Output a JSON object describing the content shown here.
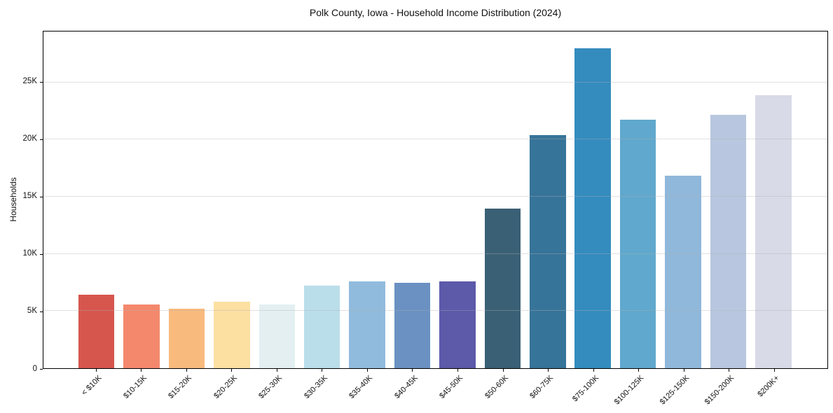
{
  "figure": {
    "background": "#ffffff",
    "spine_color": "#000000",
    "grid_color": "#b0b0b0"
  },
  "chart_data": {
    "type": "bar",
    "title": "Polk County, Iowa - Household Income Distribution (2024)",
    "xlabel": "",
    "ylabel": "Households",
    "legend_position": "none",
    "grid": "horizontal",
    "categories": [
      "< $10K",
      "$10-15K",
      "$15-20K",
      "$20-25K",
      "$25-30K",
      "$30-35K",
      "$35-40K",
      "$40-45K",
      "$45-50K",
      "$50-60K",
      "$60-75K",
      "$75-100K",
      "$100-125K",
      "$125-150K",
      "$150-200K",
      "$200K+"
    ],
    "values": [
      6400,
      5550,
      5200,
      5800,
      5600,
      7200,
      7580,
      7450,
      7600,
      13950,
      20370,
      27970,
      21760,
      16840,
      22180,
      23890
    ],
    "bar_colors": [
      "#d6564e",
      "#f4886c",
      "#f9ba7d",
      "#fce0a2",
      "#e3eff1",
      "#badeea",
      "#91bbdc",
      "#6a91c2",
      "#5c5aa9",
      "#3a6075",
      "#377499",
      "#348cbe",
      "#60a8cd",
      "#90b8da",
      "#b8c7df",
      "#d8dae7"
    ],
    "ylim": [
      0,
      29450
    ],
    "yticks": [
      {
        "value": 0,
        "label": "0"
      },
      {
        "value": 5000,
        "label": "5K"
      },
      {
        "value": 10000,
        "label": "10K"
      },
      {
        "value": 15000,
        "label": "15K"
      },
      {
        "value": 20000,
        "label": "20K"
      },
      {
        "value": 25000,
        "label": "25K"
      }
    ]
  }
}
